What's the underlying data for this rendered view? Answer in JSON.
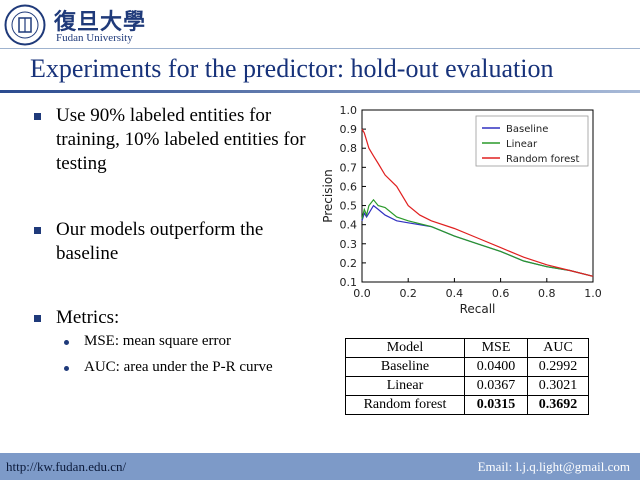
{
  "header": {
    "logo_cn": "復旦大學",
    "logo_en": "Fudan University"
  },
  "slide": {
    "title": "Experiments for the predictor: hold-out evaluation"
  },
  "bullets": [
    {
      "text": "Use 90% labeled entities for training, 10% labeled entities for testing"
    },
    {
      "text": "Our models outperform the baseline"
    },
    {
      "text": "Metrics:"
    }
  ],
  "sub_bullets": [
    {
      "text": "MSE: mean square error"
    },
    {
      "text": "AUC: area under the P-R curve"
    }
  ],
  "table": {
    "headers": [
      "Model",
      "MSE",
      "AUC"
    ],
    "rows": [
      {
        "model": "Baseline",
        "mse": "0.0400",
        "auc": "0.2992"
      },
      {
        "model": "Linear",
        "mse": "0.0367",
        "auc": "0.3021"
      },
      {
        "model": "Random forest",
        "mse": "0.0315",
        "auc": "0.3692"
      }
    ]
  },
  "footer": {
    "left": "http://kw.fudan.edu.cn/",
    "right": "Email: l.j.q.light@gmail.com"
  },
  "chart_data": {
    "type": "line",
    "xlabel": "Recall",
    "ylabel": "Precision",
    "xlim": [
      0.0,
      1.0
    ],
    "ylim": [
      0.1,
      1.0
    ],
    "xticks": [
      "0.0",
      "0.2",
      "0.4",
      "0.6",
      "0.8",
      "1.0"
    ],
    "yticks": [
      "0.1",
      "0.2",
      "0.3",
      "0.4",
      "0.5",
      "0.6",
      "0.7",
      "0.8",
      "0.9",
      "1.0"
    ],
    "grid": false,
    "legend_position": "top-right",
    "series": [
      {
        "name": "Baseline",
        "color": "#3030c0",
        "x": [
          0.0,
          0.01,
          0.02,
          0.03,
          0.05,
          0.07,
          0.1,
          0.15,
          0.2,
          0.3,
          0.4,
          0.5,
          0.6,
          0.7,
          0.8,
          0.9,
          1.0
        ],
        "y": [
          0.42,
          0.46,
          0.44,
          0.46,
          0.5,
          0.48,
          0.45,
          0.42,
          0.41,
          0.39,
          0.34,
          0.3,
          0.26,
          0.21,
          0.18,
          0.16,
          0.13
        ]
      },
      {
        "name": "Linear",
        "color": "#2a9a2a",
        "x": [
          0.0,
          0.01,
          0.02,
          0.03,
          0.05,
          0.07,
          0.1,
          0.15,
          0.2,
          0.3,
          0.4,
          0.5,
          0.6,
          0.7,
          0.8,
          0.9,
          1.0
        ],
        "y": [
          0.43,
          0.48,
          0.45,
          0.5,
          0.53,
          0.5,
          0.49,
          0.44,
          0.42,
          0.39,
          0.34,
          0.3,
          0.26,
          0.21,
          0.18,
          0.16,
          0.13
        ]
      },
      {
        "name": "Random forest",
        "color": "#e02020",
        "x": [
          0.0,
          0.01,
          0.02,
          0.03,
          0.05,
          0.07,
          0.1,
          0.15,
          0.2,
          0.25,
          0.3,
          0.4,
          0.5,
          0.6,
          0.7,
          0.8,
          0.9,
          1.0
        ],
        "y": [
          0.9,
          0.88,
          0.84,
          0.8,
          0.76,
          0.72,
          0.66,
          0.6,
          0.5,
          0.45,
          0.42,
          0.38,
          0.33,
          0.28,
          0.23,
          0.19,
          0.16,
          0.13
        ]
      }
    ]
  }
}
